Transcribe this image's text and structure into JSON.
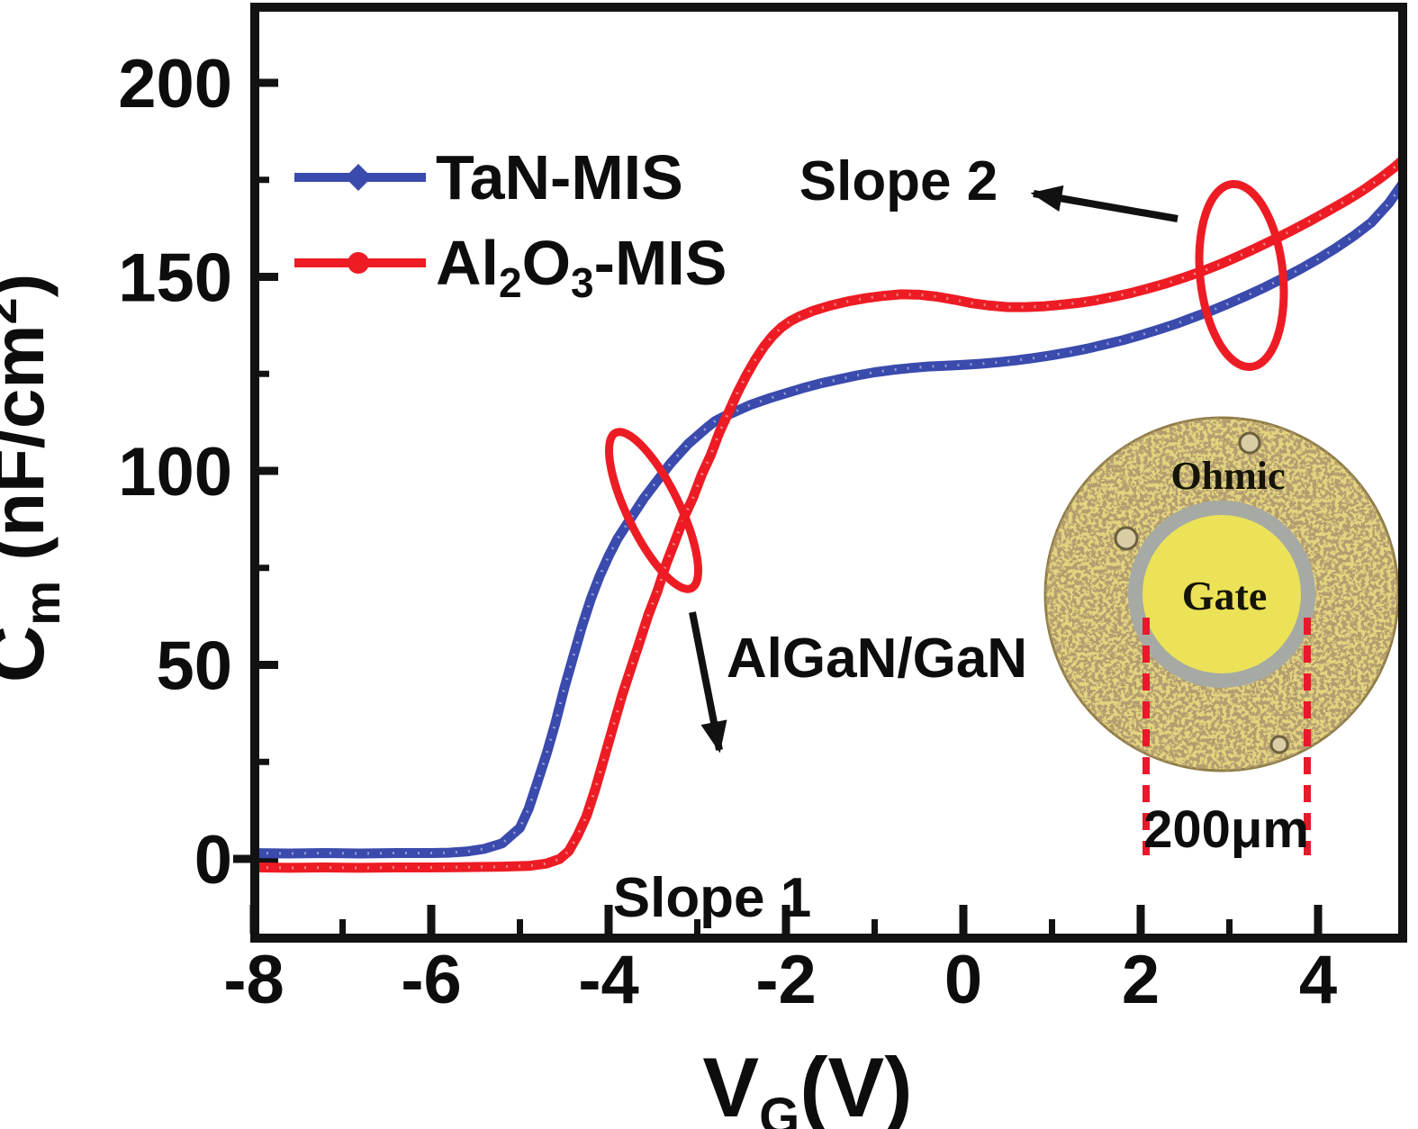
{
  "figure": {
    "bg": "#ffffff",
    "frame_color": "#121212",
    "text_color": "#0d0d0d"
  },
  "axes": {
    "x": {
      "label_parts": {
        "main": "V",
        "sub": "G",
        "unit": "(V)"
      },
      "range": [
        -8,
        5
      ],
      "major_ticks": [
        {
          "v": -8,
          "label": "-8"
        },
        {
          "v": -6,
          "label": "-6"
        },
        {
          "v": -4,
          "label": "-4"
        },
        {
          "v": -2,
          "label": "-2"
        },
        {
          "v": 0,
          "label": "0"
        },
        {
          "v": 2,
          "label": "2"
        },
        {
          "v": 4,
          "label": "4"
        }
      ],
      "minor_ticks": [
        -7,
        -5,
        -3,
        -1,
        1,
        3
      ]
    },
    "y": {
      "label_parts": {
        "main": "C",
        "sub": "m",
        "unit_pre": " (nF/cm",
        "sup": "2",
        "unit_post": ")"
      },
      "range": [
        -21,
        219
      ],
      "major_ticks": [
        {
          "v": 0,
          "label": "0"
        },
        {
          "v": 50,
          "label": "50"
        },
        {
          "v": 100,
          "label": "100"
        },
        {
          "v": 150,
          "label": "150"
        },
        {
          "v": 200,
          "label": "200"
        }
      ],
      "minor_ticks": [
        25,
        75,
        125,
        175
      ]
    }
  },
  "legend": {
    "items": [
      {
        "label": "TaN-MIS",
        "color": "#3a4aad",
        "marker": "diamond"
      },
      {
        "label": "Al2O3-MIS",
        "color": "#ed1c24",
        "marker": "circle",
        "parts": {
          "p1": "Al",
          "s1": "2",
          "p2": "O",
          "s2": "3",
          "p3": "-MIS"
        }
      }
    ]
  },
  "annotations": {
    "slope1": "Slope 1",
    "slope2": "Slope 2",
    "heterostructure": "AlGaN/GaN",
    "accent": "#ed1c24",
    "arrow_color": "#111111"
  },
  "inset": {
    "ohmic_label": "Ohmic",
    "gate_label": "Gate",
    "dimension_label": "200μm",
    "colors": {
      "ohmic_base": "#e3d47f",
      "speckle": "#6b4f28",
      "ring": "#a6aaa4",
      "gate_fill": "#ece257",
      "dash": "#e8192c",
      "hole_fill": "#d8cda4",
      "hole_edge": "#6b5f3e"
    }
  },
  "chart_data": {
    "type": "line",
    "title": "",
    "xlabel": "VG(V)",
    "ylabel": "Cm (nF/cm2)",
    "xlim": [
      -8,
      5
    ],
    "ylim": [
      -21,
      219
    ],
    "grid": false,
    "legend_position": "upper-left",
    "series": [
      {
        "name": "TaN-MIS",
        "color": "#3a4aad",
        "points": [
          [
            -8,
            1.5
          ],
          [
            -7.6,
            1.4
          ],
          [
            -7.2,
            1.5
          ],
          [
            -6.8,
            1.4
          ],
          [
            -6.4,
            1.5
          ],
          [
            -6,
            1.5
          ],
          [
            -5.8,
            1.6
          ],
          [
            -5.6,
            1.9
          ],
          [
            -5.4,
            2.6
          ],
          [
            -5.2,
            4
          ],
          [
            -5,
            8
          ],
          [
            -4.9,
            13
          ],
          [
            -4.8,
            20
          ],
          [
            -4.7,
            27
          ],
          [
            -4.6,
            35
          ],
          [
            -4.5,
            44
          ],
          [
            -4.4,
            52
          ],
          [
            -4.3,
            60
          ],
          [
            -4.2,
            67
          ],
          [
            -4.1,
            73
          ],
          [
            -4,
            78
          ],
          [
            -3.9,
            82.5
          ],
          [
            -3.8,
            86
          ],
          [
            -3.7,
            89.5
          ],
          [
            -3.6,
            93
          ],
          [
            -3.5,
            96
          ],
          [
            -3.4,
            99
          ],
          [
            -3.3,
            102
          ],
          [
            -3.2,
            104.5
          ],
          [
            -3.1,
            107
          ],
          [
            -3,
            109
          ],
          [
            -2.9,
            111
          ],
          [
            -2.8,
            112.8
          ],
          [
            -2.7,
            114
          ],
          [
            -2.6,
            115
          ],
          [
            -2.5,
            116
          ],
          [
            -2.4,
            117
          ],
          [
            -2.2,
            118.6
          ],
          [
            -2,
            120
          ],
          [
            -1.8,
            121.4
          ],
          [
            -1.6,
            122.6
          ],
          [
            -1.4,
            123.6
          ],
          [
            -1.2,
            124.6
          ],
          [
            -1,
            125.4
          ],
          [
            -0.8,
            126
          ],
          [
            -0.6,
            126.5
          ],
          [
            -0.4,
            126.9
          ],
          [
            -0.2,
            127.1
          ],
          [
            0,
            127.3
          ],
          [
            0.2,
            127.6
          ],
          [
            0.4,
            128
          ],
          [
            0.6,
            128.5
          ],
          [
            0.8,
            129.1
          ],
          [
            1,
            129.8
          ],
          [
            1.2,
            130.6
          ],
          [
            1.4,
            131.5
          ],
          [
            1.6,
            132.6
          ],
          [
            1.8,
            133.7
          ],
          [
            2,
            135
          ],
          [
            2.2,
            136.4
          ],
          [
            2.4,
            137.9
          ],
          [
            2.6,
            139.6
          ],
          [
            2.8,
            141.3
          ],
          [
            3,
            143.2
          ],
          [
            3.2,
            145.2
          ],
          [
            3.4,
            147.3
          ],
          [
            3.6,
            149.6
          ],
          [
            3.8,
            152
          ],
          [
            4,
            154.6
          ],
          [
            4.2,
            157.4
          ],
          [
            4.4,
            160.5
          ],
          [
            4.6,
            164
          ],
          [
            4.8,
            169
          ],
          [
            5,
            175.5
          ]
        ]
      },
      {
        "name": "Al2O3-MIS",
        "color": "#ed1c24",
        "points": [
          [
            -8,
            -2.2
          ],
          [
            -7.6,
            -2.3
          ],
          [
            -7.2,
            -2.2
          ],
          [
            -6.8,
            -2.3
          ],
          [
            -6.4,
            -2.2
          ],
          [
            -6,
            -2.2
          ],
          [
            -5.6,
            -2.1
          ],
          [
            -5.2,
            -2
          ],
          [
            -4.9,
            -1.8
          ],
          [
            -4.7,
            -1.2
          ],
          [
            -4.55,
            0
          ],
          [
            -4.45,
            2
          ],
          [
            -4.35,
            6
          ],
          [
            -4.25,
            11
          ],
          [
            -4.15,
            18
          ],
          [
            -4.05,
            26
          ],
          [
            -3.95,
            34
          ],
          [
            -3.85,
            42
          ],
          [
            -3.75,
            49
          ],
          [
            -3.65,
            56
          ],
          [
            -3.55,
            63
          ],
          [
            -3.45,
            69
          ],
          [
            -3.35,
            76
          ],
          [
            -3.25,
            82
          ],
          [
            -3.15,
            88
          ],
          [
            -3.05,
            93
          ],
          [
            -2.95,
            99
          ],
          [
            -2.85,
            104
          ],
          [
            -2.75,
            110
          ],
          [
            -2.65,
            115
          ],
          [
            -2.55,
            120
          ],
          [
            -2.45,
            124.5
          ],
          [
            -2.35,
            128.5
          ],
          [
            -2.25,
            132
          ],
          [
            -2.15,
            134.8
          ],
          [
            -2.05,
            137
          ],
          [
            -1.95,
            138.6
          ],
          [
            -1.85,
            139.8
          ],
          [
            -1.7,
            141.2
          ],
          [
            -1.5,
            142.6
          ],
          [
            -1.3,
            143.7
          ],
          [
            -1.1,
            144.5
          ],
          [
            -0.9,
            145.1
          ],
          [
            -0.7,
            145.5
          ],
          [
            -0.5,
            145.4
          ],
          [
            -0.3,
            144.9
          ],
          [
            -0.1,
            144.1
          ],
          [
            0.1,
            143.2
          ],
          [
            0.3,
            142.6
          ],
          [
            0.5,
            142.2
          ],
          [
            0.7,
            142.2
          ],
          [
            0.9,
            142.4
          ],
          [
            1.1,
            142.8
          ],
          [
            1.3,
            143.3
          ],
          [
            1.5,
            144
          ],
          [
            1.7,
            144.9
          ],
          [
            1.9,
            145.9
          ],
          [
            2.1,
            147.1
          ],
          [
            2.3,
            148.4
          ],
          [
            2.5,
            149.9
          ],
          [
            2.7,
            151.5
          ],
          [
            2.9,
            153.3
          ],
          [
            3.1,
            155.3
          ],
          [
            3.3,
            157.4
          ],
          [
            3.5,
            159.6
          ],
          [
            3.7,
            161.9
          ],
          [
            3.9,
            164.3
          ],
          [
            4.1,
            166.8
          ],
          [
            4.3,
            169.4
          ],
          [
            4.5,
            172.2
          ],
          [
            4.7,
            175.4
          ],
          [
            4.85,
            178
          ],
          [
            5,
            181
          ]
        ]
      }
    ]
  }
}
